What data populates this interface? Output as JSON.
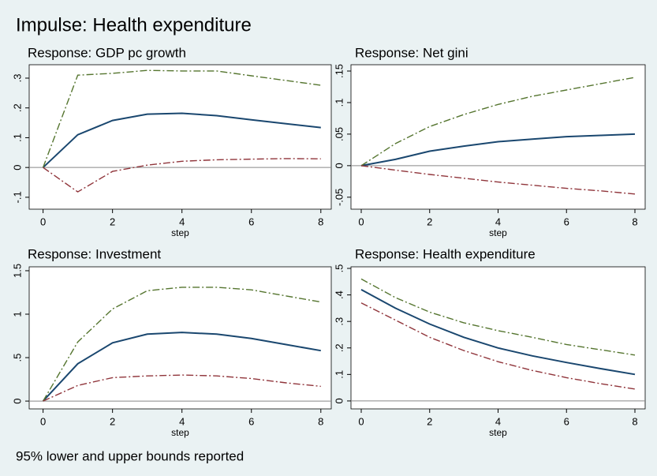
{
  "title": "Impulse: Health expenditure",
  "note": "95% lower and upper bounds reported",
  "chart_data": [
    {
      "type": "line",
      "title": "Response: GDP pc growth",
      "xlabel": "step",
      "x": [
        0,
        1,
        2,
        3,
        4,
        5,
        6,
        7,
        8
      ],
      "xlim": [
        -0.4,
        8.3
      ],
      "xticks": [
        0,
        2,
        4,
        6,
        8
      ],
      "ylim": [
        -0.14,
        0.345
      ],
      "yticks": [
        {
          "value": -0.1,
          "label": "-.1"
        },
        0,
        {
          "value": 0.1,
          "label": ".1"
        },
        {
          "value": 0.2,
          "label": ".2"
        },
        {
          "value": 0.3,
          "label": ".3"
        }
      ],
      "zero_line": true,
      "series": [
        {
          "color": "#1a476f",
          "dash": "solid",
          "values": [
            0,
            0.11,
            0.158,
            0.179,
            0.182,
            0.174,
            0.16,
            0.147,
            0.134
          ]
        },
        {
          "color": "#55752f",
          "dash": "dashdot",
          "values": [
            0,
            0.31,
            0.316,
            0.326,
            0.324,
            0.324,
            0.308,
            0.292,
            0.276
          ]
        },
        {
          "color": "#90353b",
          "dash": "dashdot",
          "values": [
            0,
            -0.082,
            -0.013,
            0.008,
            0.021,
            0.026,
            0.028,
            0.03,
            0.029
          ]
        }
      ]
    },
    {
      "type": "line",
      "title": "Response: Net gini",
      "xlabel": "step",
      "x": [
        0,
        1,
        2,
        3,
        4,
        5,
        6,
        7,
        8
      ],
      "xlim": [
        -0.3,
        8.3
      ],
      "xticks": [
        0,
        2,
        4,
        6,
        8
      ],
      "ylim": [
        -0.069,
        0.16
      ],
      "yticks": [
        {
          "value": -0.05,
          "label": "-.05"
        },
        0,
        {
          "value": 0.05,
          "label": ".05"
        },
        {
          "value": 0.1,
          "label": ".1"
        },
        {
          "value": 0.15,
          "label": ".15"
        }
      ],
      "zero_line": true,
      "series": [
        {
          "color": "#1a476f",
          "dash": "solid",
          "values": [
            0,
            0.01,
            0.023,
            0.031,
            0.038,
            0.042,
            0.046,
            0.048,
            0.05
          ]
        },
        {
          "color": "#55752f",
          "dash": "dashdot",
          "values": [
            0,
            0.035,
            0.062,
            0.081,
            0.097,
            0.11,
            0.12,
            0.13,
            0.14
          ]
        },
        {
          "color": "#90353b",
          "dash": "dashdot",
          "values": [
            0,
            -0.007,
            -0.014,
            -0.02,
            -0.026,
            -0.031,
            -0.036,
            -0.04,
            -0.045
          ]
        }
      ]
    },
    {
      "type": "line",
      "title": "Response: Investment",
      "xlabel": "step",
      "x": [
        0,
        1,
        2,
        3,
        4,
        5,
        6,
        7,
        8
      ],
      "xlim": [
        -0.4,
        8.3
      ],
      "xticks": [
        0,
        2,
        4,
        6,
        8
      ],
      "ylim": [
        -0.09,
        1.545
      ],
      "yticks": [
        0,
        {
          "value": 0.5,
          "label": ".5"
        },
        1,
        1.5
      ],
      "zero_line": true,
      "series": [
        {
          "color": "#1a476f",
          "dash": "solid",
          "values": [
            0,
            0.43,
            0.67,
            0.77,
            0.79,
            0.77,
            0.72,
            0.65,
            0.58
          ]
        },
        {
          "color": "#55752f",
          "dash": "dashdot",
          "values": [
            0,
            0.68,
            1.06,
            1.27,
            1.31,
            1.31,
            1.28,
            1.21,
            1.14
          ]
        },
        {
          "color": "#90353b",
          "dash": "dashdot",
          "values": [
            0,
            0.18,
            0.27,
            0.29,
            0.3,
            0.29,
            0.26,
            0.21,
            0.17
          ]
        }
      ]
    },
    {
      "type": "line",
      "title": "Response: Health expenditure",
      "xlabel": "step",
      "x": [
        0,
        1,
        2,
        3,
        4,
        5,
        6,
        7,
        8
      ],
      "xlim": [
        -0.3,
        8.3
      ],
      "xticks": [
        0,
        2,
        4,
        6,
        8
      ],
      "ylim": [
        -0.03,
        0.506
      ],
      "yticks": [
        0,
        {
          "value": 0.1,
          "label": ".1"
        },
        {
          "value": 0.2,
          "label": ".2"
        },
        {
          "value": 0.3,
          "label": ".3"
        },
        {
          "value": 0.4,
          "label": ".4"
        },
        {
          "value": 0.5,
          "label": ".5"
        }
      ],
      "zero_line": true,
      "series": [
        {
          "color": "#1a476f",
          "dash": "solid",
          "values": [
            0.42,
            0.35,
            0.29,
            0.24,
            0.2,
            0.17,
            0.145,
            0.122,
            0.1
          ]
        },
        {
          "color": "#55752f",
          "dash": "dashdot",
          "values": [
            0.46,
            0.39,
            0.335,
            0.295,
            0.265,
            0.24,
            0.213,
            0.193,
            0.173
          ]
        },
        {
          "color": "#90353b",
          "dash": "dashdot",
          "values": [
            0.37,
            0.305,
            0.24,
            0.19,
            0.148,
            0.115,
            0.088,
            0.065,
            0.045
          ]
        }
      ]
    }
  ]
}
